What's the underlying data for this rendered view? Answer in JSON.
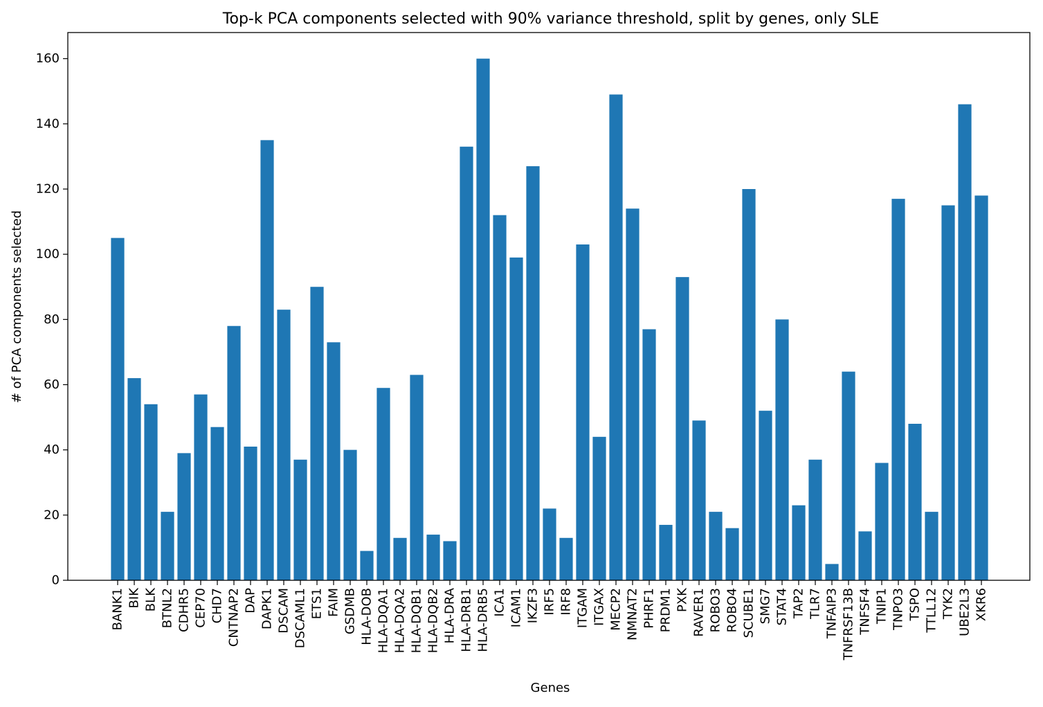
{
  "chart_data": {
    "type": "bar",
    "title": "Top-k PCA components selected with 90% variance threshold, split by genes, only SLE",
    "xlabel": "Genes",
    "ylabel": "# of PCA components selected",
    "ylim": [
      0,
      168
    ],
    "yticks": [
      0,
      20,
      40,
      60,
      80,
      100,
      120,
      140,
      160
    ],
    "grid": false,
    "bar_color": "#1f77b4",
    "categories": [
      "BANK1",
      "BIK",
      "BLK",
      "BTNL2",
      "CDHR5",
      "CEP70",
      "CHD7",
      "CNTNAP2",
      "DAP",
      "DAPK1",
      "DSCAM",
      "DSCAML1",
      "ETS1",
      "FAIM",
      "GSDMB",
      "HLA-DOB",
      "HLA-DQA1",
      "HLA-DQA2",
      "HLA-DQB1",
      "HLA-DQB2",
      "HLA-DRA",
      "HLA-DRB1",
      "HLA-DRB5",
      "ICA1",
      "ICAM1",
      "IKZF3",
      "IRF5",
      "IRF8",
      "ITGAM",
      "ITGAX",
      "MECP2",
      "NMNAT2",
      "PHRF1",
      "PRDM1",
      "PXK",
      "RAVER1",
      "ROBO3",
      "ROBO4",
      "SCUBE1",
      "SMG7",
      "STAT4",
      "TAP2",
      "TLR7",
      "TNFAIP3",
      "TNFRSF13B",
      "TNFSF4",
      "TNIP1",
      "TNPO3",
      "TSPO",
      "TTLL12",
      "TYK2",
      "UBE2L3",
      "XKR6"
    ],
    "values": [
      105,
      62,
      54,
      21,
      39,
      57,
      47,
      78,
      41,
      135,
      83,
      37,
      90,
      73,
      40,
      9,
      59,
      13,
      63,
      14,
      12,
      133,
      160,
      112,
      99,
      127,
      22,
      13,
      103,
      44,
      149,
      114,
      77,
      17,
      93,
      49,
      21,
      16,
      120,
      52,
      80,
      23,
      37,
      5,
      64,
      15,
      36,
      117,
      48,
      21,
      115,
      146,
      118
    ]
  }
}
